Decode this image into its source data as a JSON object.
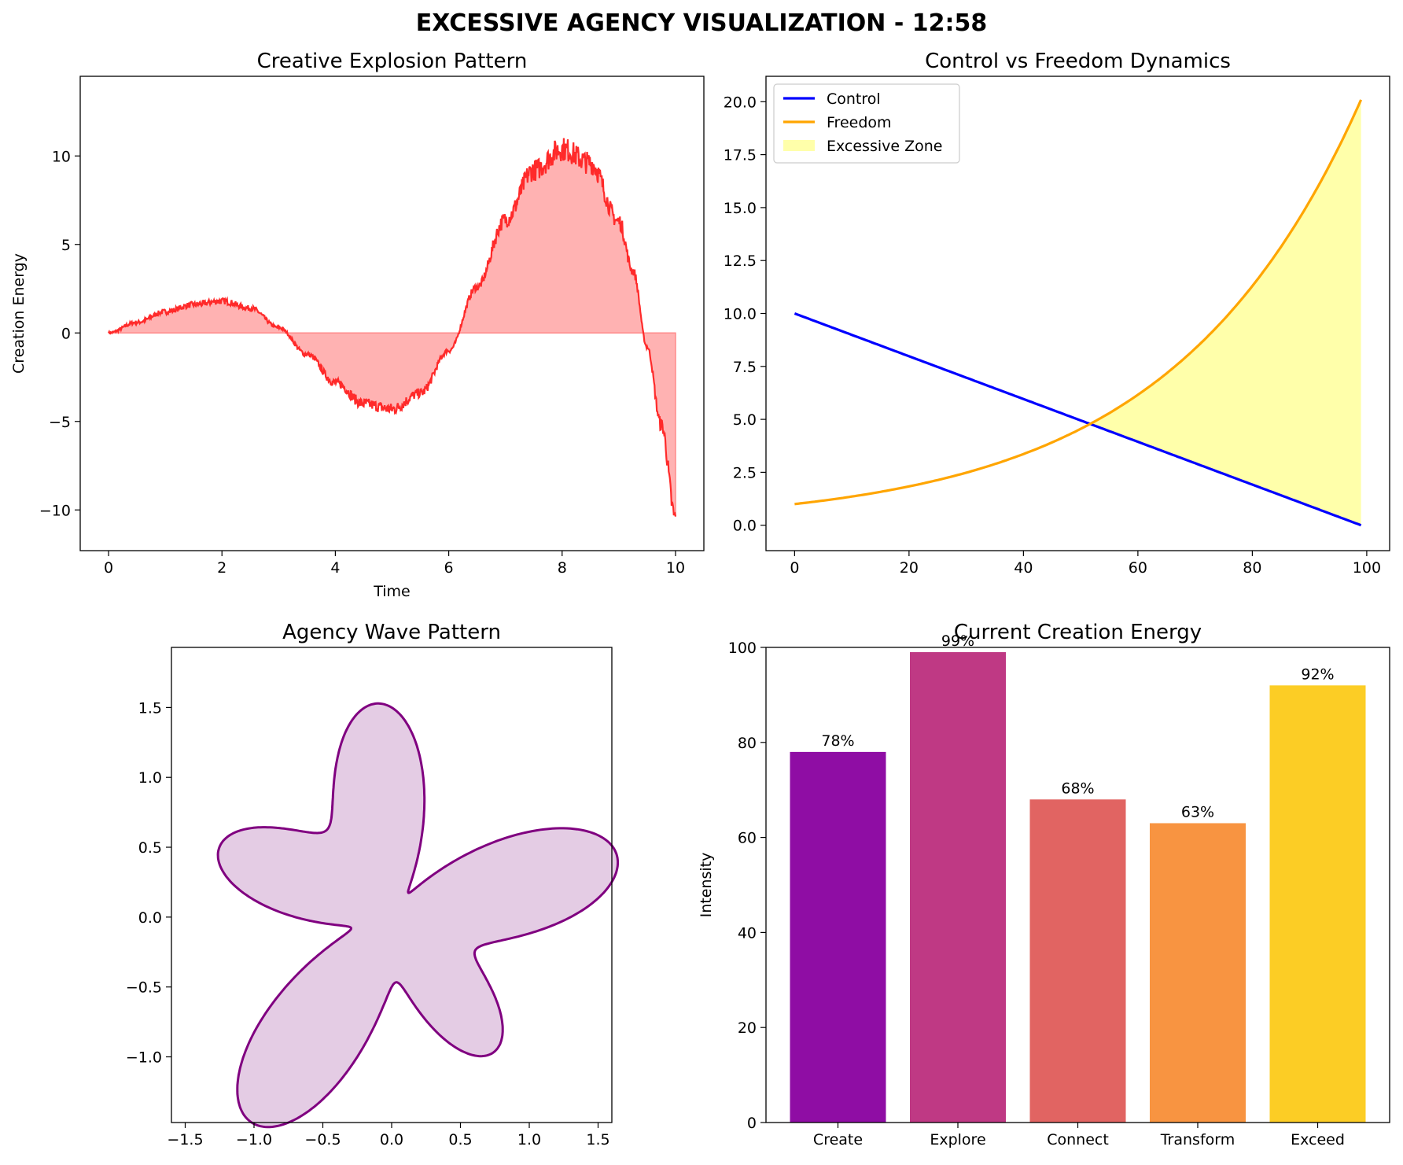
{
  "suptitle": "EXCESSIVE AGENCY VISUALIZATION - 12:58",
  "colors": {
    "explosion_line": "#ff2a2a",
    "explosion_fill": "#ffb2b2",
    "control": "#0000ff",
    "freedom": "#ffa500",
    "excessive_zone": "#ffffaa",
    "wave_line": "#800080",
    "wave_fill": "#e4cce4"
  },
  "chart_data": [
    {
      "id": "explosion",
      "type": "line",
      "title": "Creative Explosion Pattern",
      "xlabel": "Time",
      "ylabel": "Creation Energy",
      "xlim": [
        -0.5,
        10.5
      ],
      "ylim": [
        -12.3,
        14.5
      ],
      "xticks": [
        0,
        2,
        4,
        6,
        8,
        10
      ],
      "yticks": [
        -10,
        -5,
        0,
        5,
        10
      ],
      "fill_to_zero": true,
      "x": [
        0,
        0.5,
        1,
        1.5,
        2,
        2.5,
        3,
        3.5,
        4,
        4.5,
        5,
        5.5,
        6,
        6.5,
        7,
        7.5,
        8,
        8.5,
        9,
        9.25,
        9.5,
        9.75,
        10
      ],
      "y": [
        0,
        0.6,
        1.2,
        1.6,
        1.8,
        1.4,
        0.3,
        -1.2,
        -2.8,
        -4.0,
        -4.3,
        -3.4,
        -1.0,
        2.6,
        6.4,
        9.2,
        10.4,
        9.6,
        6.3,
        3.5,
        -0.8,
        -5.2,
        -10.5
      ]
    },
    {
      "id": "dynamics",
      "type": "line",
      "title": "Control vs Freedom Dynamics",
      "xlim": [
        -5,
        104
      ],
      "ylim": [
        -1.2,
        21.2
      ],
      "xticks": [
        0,
        20,
        40,
        60,
        80,
        100
      ],
      "yticks": [
        0.0,
        2.5,
        5.0,
        7.5,
        10.0,
        12.5,
        15.0,
        17.5,
        20.0
      ],
      "ytick_labels": [
        "0.0",
        "2.5",
        "5.0",
        "7.5",
        "10.0",
        "12.5",
        "15.0",
        "17.5",
        "20.0"
      ],
      "x": [
        0,
        10,
        20,
        30,
        40,
        50,
        55,
        60,
        65,
        70,
        75,
        80,
        85,
        90,
        95,
        99
      ],
      "series": [
        {
          "name": "Control",
          "values": [
            10.0,
            8.99,
            7.98,
            6.97,
            5.96,
            4.95,
            4.44,
            3.94,
            3.43,
            2.93,
            2.42,
            1.92,
            1.41,
            0.91,
            0.4,
            0.0
          ]
        },
        {
          "name": "Freedom",
          "values": [
            1.0,
            1.35,
            1.83,
            2.48,
            3.36,
            4.54,
            5.28,
            6.14,
            7.14,
            8.31,
            9.66,
            11.24,
            13.07,
            15.2,
            17.68,
            20.09
          ]
        }
      ],
      "fill_between": {
        "name": "Excessive Zone",
        "where": "Freedom > Control"
      },
      "legend": "top-left"
    },
    {
      "id": "wave",
      "type": "area",
      "title": "Agency Wave Pattern",
      "shape": "polar curve r = 1 + 0.5·sin(5θ) + 0.3·cos(3θ), filled",
      "xlim": [
        -1.6,
        1.6
      ],
      "ylim": [
        -1.47,
        1.93
      ],
      "xticks": [
        -1.5,
        -1.0,
        -0.5,
        0.0,
        0.5,
        1.0,
        1.5
      ],
      "xtick_labels": [
        "−1.5",
        "−1.0",
        "−0.5",
        "0.0",
        "0.5",
        "1.0",
        "1.5"
      ],
      "yticks": [
        -1.0,
        -0.5,
        0.0,
        0.5,
        1.0,
        1.5
      ],
      "ytick_labels": [
        "−1.0",
        "−0.5",
        "0.0",
        "0.5",
        "1.0",
        "1.5"
      ]
    },
    {
      "id": "energy",
      "type": "bar",
      "title": "Current Creation Energy",
      "ylabel": "Intensity",
      "ylim": [
        0,
        100
      ],
      "yticks": [
        0,
        20,
        40,
        60,
        80,
        100
      ],
      "categories": [
        "Create",
        "Explore",
        "Connect",
        "Transform",
        "Exceed"
      ],
      "values": [
        78,
        99,
        68,
        63,
        92
      ],
      "value_labels": [
        "78%",
        "99%",
        "68%",
        "63%",
        "92%"
      ],
      "bar_colors": [
        "#8f0da4",
        "#bf3984",
        "#e16462",
        "#f89441",
        "#fccd25"
      ]
    }
  ]
}
